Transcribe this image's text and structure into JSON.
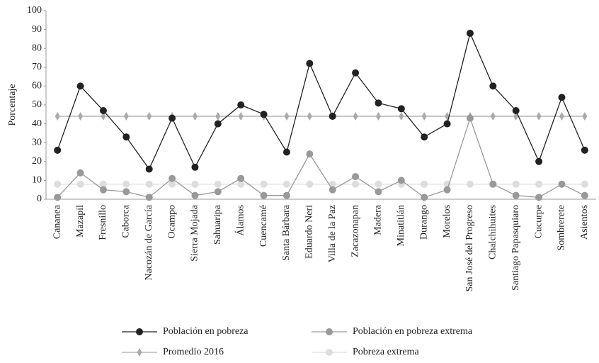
{
  "chart_data": {
    "type": "line",
    "ylabel": "Porcentaje",
    "categories": [
      "Cananea",
      "Mazapil",
      "Fresnillo",
      "Caborca",
      "Nacozán de García",
      "Ocampo",
      "Sierra Mojada",
      "Sahuaripa",
      "Álamos",
      "Cuencamé",
      "Santa Bárbara",
      "Eduardo Neri",
      "Villa de la Paz",
      "Zacazonapan",
      "Madera",
      "Minatitlán",
      "Durango",
      "Morelos",
      "San José del Progreso",
      "Chalchihuites",
      "Santiago Papasquiaro",
      "Cucurpe",
      "Sombrerete",
      "Asientos"
    ],
    "series": [
      {
        "name": "Población en pobreza",
        "color": "#222222",
        "marker": "circle",
        "values": [
          26,
          60,
          47,
          33,
          16,
          43,
          17,
          40,
          50,
          45,
          25,
          72,
          44,
          67,
          51,
          48,
          33,
          40,
          88,
          60,
          47,
          20,
          54,
          26
        ]
      },
      {
        "name": "Población en pobreza extrema",
        "color": "#999999",
        "marker": "circle",
        "values": [
          1,
          14,
          5,
          4,
          1,
          11,
          2,
          4,
          11,
          2,
          2,
          24,
          5,
          12,
          4,
          10,
          1,
          5,
          43,
          8,
          2,
          1,
          8,
          2
        ]
      },
      {
        "name": "Promedio 2016",
        "color": "#aaaaaa",
        "marker": "diamond",
        "values": [
          44,
          44,
          44,
          44,
          44,
          44,
          44,
          44,
          44,
          44,
          44,
          44,
          44,
          44,
          44,
          44,
          44,
          44,
          44,
          44,
          44,
          44,
          44,
          44
        ]
      },
      {
        "name": "Pobreza extrema",
        "color": "#dddddd",
        "marker": "circle",
        "values": [
          8,
          8,
          8,
          8,
          8,
          8,
          8,
          8,
          8,
          8,
          8,
          8,
          8,
          8,
          8,
          8,
          8,
          8,
          8,
          8,
          8,
          8,
          8,
          8
        ]
      }
    ],
    "ylim": [
      0,
      100
    ],
    "yticks": [
      0,
      10,
      20,
      30,
      40,
      50,
      60,
      70,
      80,
      90,
      100
    ],
    "grid": false,
    "legend": "bottom"
  }
}
